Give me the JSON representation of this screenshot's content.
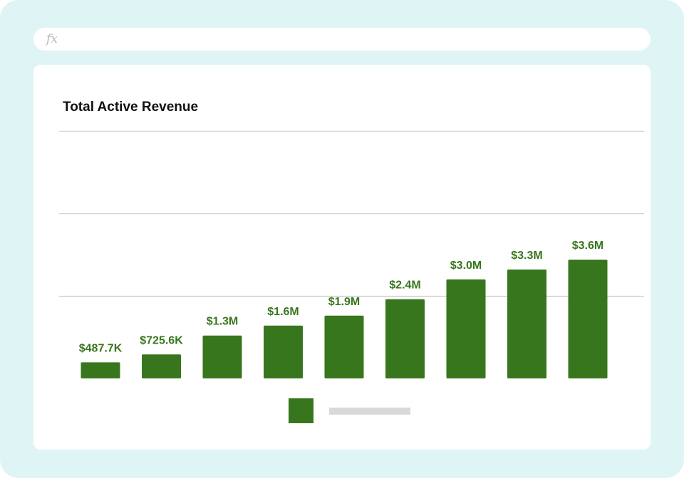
{
  "formula_bar": {
    "icon": "fx-icon",
    "text": "fx"
  },
  "colors": {
    "bar": "#38761d",
    "label": "#38761d",
    "grid": "#cccccc",
    "background": "#dff5f5"
  },
  "chart_data": {
    "type": "bar",
    "title": "Total Active Revenue",
    "xlabel": "",
    "ylabel": "",
    "categories": [
      "",
      "",
      "",
      "",
      "",
      "",
      "",
      "",
      ""
    ],
    "values": [
      487700,
      725600,
      1300000,
      1600000,
      1900000,
      2400000,
      3000000,
      3300000,
      3600000
    ],
    "data_labels": [
      "$487.7K",
      "$725.6K",
      "$1.3M",
      "$1.6M",
      "$1.9M",
      "$2.4M",
      "$3.0M",
      "$3.3M",
      "$3.6M"
    ],
    "ylim": [
      0,
      7500000
    ],
    "gridlines": [
      2500000,
      5000000,
      7500000
    ],
    "grid": true,
    "legend": "bottom"
  }
}
